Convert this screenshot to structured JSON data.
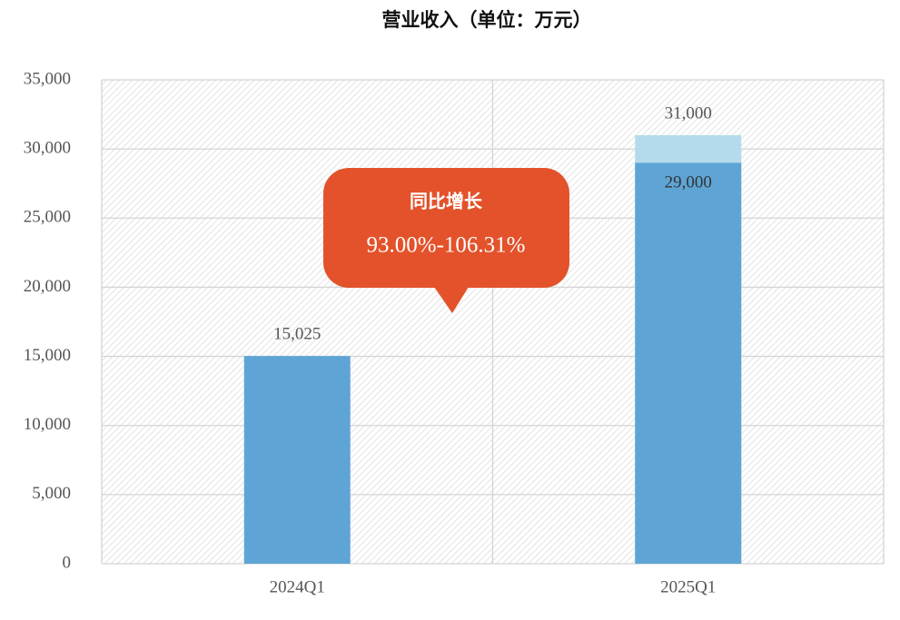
{
  "chart_data": {
    "type": "bar",
    "title": "营业收入（单位：万元）",
    "categories": [
      "2024Q1",
      "2025Q1"
    ],
    "series": [
      {
        "color": "#b4dbec",
        "values": [
          null,
          31000
        ],
        "value_labels": [
          null,
          "31,000"
        ]
      },
      {
        "color": "#5ea5d6",
        "values": [
          15025,
          29000
        ],
        "value_labels": [
          "15,025",
          "29,000"
        ]
      }
    ],
    "ylim": [
      0,
      35000
    ],
    "yticks": [
      0,
      {
        "value": 5000,
        "label": "5,000"
      },
      {
        "value": 10000,
        "label": "10,000"
      },
      {
        "value": 15000,
        "label": "15,000"
      },
      {
        "value": 20000,
        "label": "20,000"
      },
      {
        "value": 25000,
        "label": "25,000"
      },
      {
        "value": 30000,
        "label": "30,000"
      },
      {
        "value": 35000,
        "label": "35,000"
      }
    ],
    "grid": true,
    "annotation": {
      "title": "同比增长",
      "text": "93.00%-106.31%",
      "color": "#e3522b"
    }
  }
}
